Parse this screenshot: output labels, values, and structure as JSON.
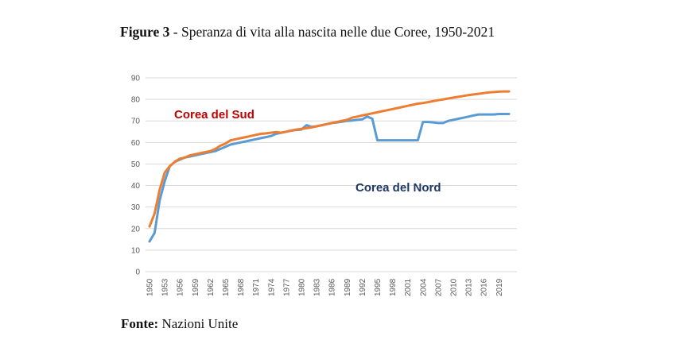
{
  "figure": {
    "number": "Figure 3",
    "title_text": " - Speranza di vita alla nascita nelle due Coree, 1950-2021"
  },
  "source": {
    "label": "Fonte:",
    "text": " Nazioni Unite"
  },
  "chart_data": {
    "type": "line",
    "ylim": [
      0,
      90
    ],
    "yticks": [
      0,
      10,
      20,
      30,
      40,
      50,
      60,
      70,
      80,
      90
    ],
    "xlim": [
      1950,
      2021
    ],
    "xticks": [
      1950,
      1953,
      1956,
      1959,
      1962,
      1965,
      1968,
      1971,
      1974,
      1977,
      1980,
      1983,
      1986,
      1989,
      1992,
      1995,
      1998,
      2001,
      2004,
      2007,
      2010,
      2013,
      2016,
      2019
    ],
    "grid": "horizontal",
    "colors": {
      "south": "#ed7d31",
      "north": "#5b9bd5",
      "south_label": "#c00000",
      "north_label": "#1f3864"
    },
    "series": [
      {
        "name": "Corea del Sud",
        "color": "#ed7d31",
        "x": [
          1950,
          1951,
          1952,
          1953,
          1954,
          1955,
          1956,
          1957,
          1958,
          1959,
          1960,
          1961,
          1962,
          1963,
          1964,
          1965,
          1966,
          1967,
          1968,
          1969,
          1970,
          1971,
          1972,
          1973,
          1974,
          1975,
          1976,
          1977,
          1978,
          1979,
          1980,
          1981,
          1982,
          1983,
          1984,
          1985,
          1986,
          1987,
          1988,
          1989,
          1990,
          1991,
          1992,
          1993,
          1994,
          1995,
          1996,
          1997,
          1998,
          1999,
          2000,
          2001,
          2002,
          2003,
          2004,
          2005,
          2006,
          2007,
          2008,
          2009,
          2010,
          2011,
          2012,
          2013,
          2014,
          2015,
          2016,
          2017,
          2018,
          2019,
          2020,
          2021
        ],
        "values": [
          21,
          27,
          38,
          46,
          49,
          51,
          52.5,
          53,
          54,
          54.5,
          55,
          55.5,
          56,
          57,
          58.5,
          59.5,
          61,
          61.5,
          62,
          62.5,
          63,
          63.5,
          64,
          64.2,
          64.5,
          64.8,
          64.5,
          65,
          65.5,
          66,
          66.3,
          66.6,
          67,
          67.5,
          68,
          68.5,
          69,
          69.5,
          70,
          70.5,
          71.5,
          72,
          72.5,
          73,
          73.5,
          74,
          74.5,
          75,
          75.5,
          76,
          76.5,
          77,
          77.5,
          78,
          78.3,
          78.7,
          79.2,
          79.6,
          80,
          80.4,
          80.8,
          81.2,
          81.6,
          82,
          82.3,
          82.6,
          82.9,
          83.2,
          83.4,
          83.6,
          83.7,
          83.7
        ]
      },
      {
        "name": "Corea del Nord",
        "color": "#5b9bd5",
        "x": [
          1950,
          1951,
          1952,
          1953,
          1954,
          1955,
          1956,
          1957,
          1958,
          1959,
          1960,
          1961,
          1962,
          1963,
          1964,
          1965,
          1966,
          1967,
          1968,
          1969,
          1970,
          1971,
          1972,
          1973,
          1974,
          1975,
          1976,
          1977,
          1978,
          1979,
          1980,
          1981,
          1982,
          1983,
          1984,
          1985,
          1986,
          1987,
          1988,
          1989,
          1990,
          1991,
          1992,
          1993,
          1994,
          1995,
          1996,
          1997,
          1998,
          1999,
          2000,
          2001,
          2002,
          2003,
          2004,
          2005,
          2006,
          2007,
          2008,
          2009,
          2010,
          2011,
          2012,
          2013,
          2014,
          2015,
          2016,
          2017,
          2018,
          2019,
          2020,
          2021
        ],
        "values": [
          14,
          18,
          33,
          42,
          49,
          51,
          52,
          53,
          53.5,
          54,
          54.5,
          55,
          55.5,
          56,
          57,
          58,
          59,
          59.5,
          60,
          60.5,
          61,
          61.5,
          62,
          62.5,
          63,
          64,
          64.5,
          65,
          65.5,
          65.8,
          66,
          68,
          67.2,
          67.5,
          68,
          68.5,
          69,
          69.3,
          69.6,
          70,
          70.2,
          70.5,
          70.7,
          72,
          71,
          61,
          61,
          61,
          61,
          61,
          61,
          61,
          61,
          61,
          69.5,
          69.5,
          69.3,
          69,
          69,
          70,
          70.5,
          71,
          71.5,
          72,
          72.5,
          73,
          73,
          73,
          73,
          73.2,
          73.2,
          73.2
        ]
      }
    ],
    "annotations": [
      {
        "text": "Corea del Sud",
        "color": "#c00000"
      },
      {
        "text": "Corea del Nord",
        "color": "#1f3864"
      }
    ]
  }
}
